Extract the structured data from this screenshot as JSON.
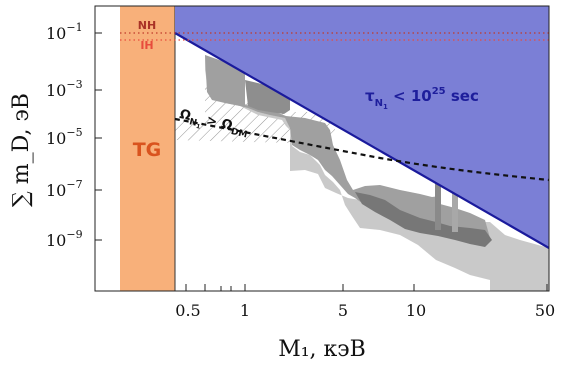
{
  "chart_data": {
    "type": "area",
    "xlabel": "M₁, кэВ",
    "ylabel": "∑ m_D, эВ",
    "xscale": "log",
    "yscale": "log",
    "xlim": [
      0.19,
      52
    ],
    "ylim": [
      1e-11,
      1
    ],
    "x_ticks": [
      {
        "value": 0.5,
        "label": "0.5"
      },
      {
        "value": 1,
        "label": "1"
      },
      {
        "value": 5,
        "label": "5"
      },
      {
        "value": 10,
        "label": "10"
      },
      {
        "value": 50,
        "label": "50"
      }
    ],
    "y_ticks": [
      {
        "value": 0.1,
        "base": "10",
        "exp": "−1"
      },
      {
        "value": 0.001,
        "base": "10",
        "exp": "−3"
      },
      {
        "value": 1e-05,
        "base": "10",
        "exp": "−5"
      },
      {
        "value": 1e-07,
        "base": "10",
        "exp": "−7"
      },
      {
        "value": 1e-09,
        "base": "10",
        "exp": "−9"
      }
    ],
    "regions": [
      {
        "label": "TG",
        "type": "vertical-band",
        "x": [
          0.2,
          0.4
        ],
        "color": "#f8b07a",
        "label_color": "#d9531e"
      },
      {
        "label": "τ_N1 < 10^25 sec",
        "type": "above-line",
        "line": [
          [
            0.4,
            0.1
          ],
          [
            50,
            4e-10
          ]
        ],
        "color": "#7b7fd6",
        "label_color": "#1e1e9c"
      }
    ],
    "lines": [
      {
        "label": "NH",
        "y": 0.1,
        "style": "dotted",
        "color": "#c0392b"
      },
      {
        "label": "IH",
        "y": 0.05,
        "style": "dotted",
        "color": "#e74c3c"
      },
      {
        "label": "Ω_N1 > Ω_DM",
        "points": [
          [
            0.4,
            1.1e-05
          ],
          [
            2,
            5e-06
          ],
          [
            10,
            1.5e-06
          ],
          [
            50,
            3e-07
          ]
        ],
        "style": "dashed",
        "color": "#111111"
      }
    ],
    "excluded_gray_regions": "stepped observational bounds between M₁ ≈ 0.5 and 50 кэВ",
    "annotations": {
      "tg": "TG",
      "nh": "NH",
      "ih": "IH",
      "lifetime_base": "τ",
      "lifetime_sub": "N",
      "lifetime_subsub": "1",
      "lifetime_mid": " < 10",
      "lifetime_exp": "25",
      "lifetime_tail": " sec",
      "omega_left": "Ω",
      "omega_left_sub": "N",
      "omega_left_subsub": "1",
      "omega_mid": " > Ω",
      "omega_right_sub": "DM"
    }
  }
}
